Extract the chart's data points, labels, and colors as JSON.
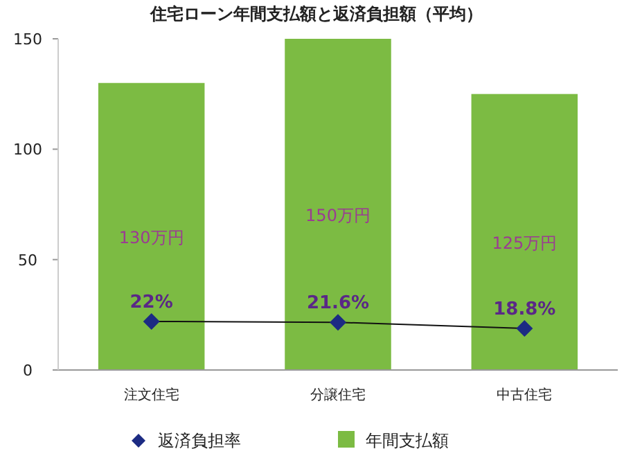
{
  "chart_data": {
    "type": "bar",
    "title": "住宅ローン年間支払額と返済負担額（平均）",
    "categories": [
      "注文住宅",
      "分譲住宅",
      "中古住宅"
    ],
    "series": [
      {
        "name": "年間支払額",
        "color": "#7cbb43",
        "values": [
          130,
          150,
          125
        ],
        "value_labels": [
          "130万円",
          "150万円",
          "125万円"
        ]
      },
      {
        "name": "返済負担率",
        "type": "line",
        "color": "#1c2b83",
        "values": [
          22,
          21.6,
          18.8
        ],
        "value_labels": [
          "22%",
          "21.6%",
          "18.8%"
        ],
        "marker": "diamond"
      }
    ],
    "ylim": [
      0,
      150
    ],
    "yticks": [
      0,
      50,
      100,
      150
    ],
    "grid": false,
    "legend": "bottom"
  }
}
